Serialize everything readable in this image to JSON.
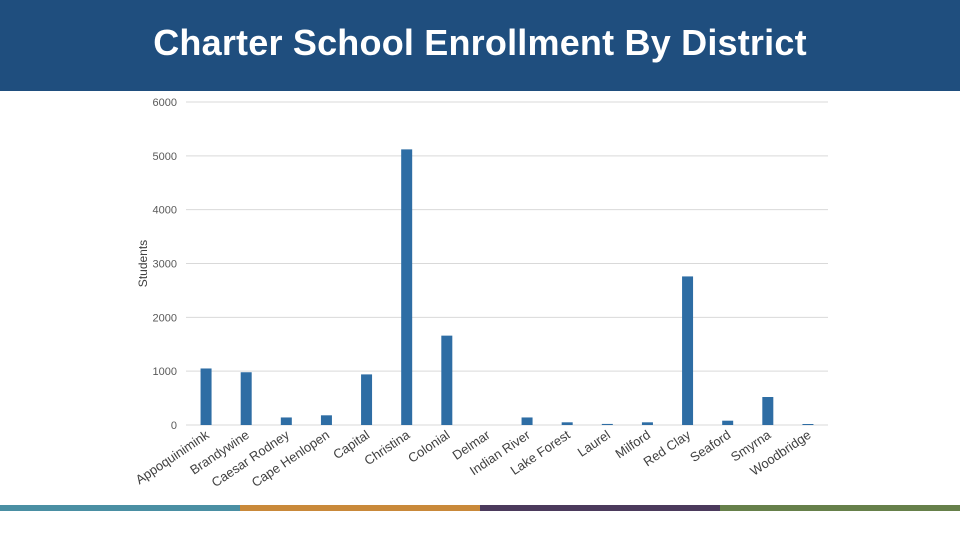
{
  "header": {
    "title": "Charter School Enrollment By District"
  },
  "colors": {
    "header_bg": "#1f4e7e",
    "bar": "#2e6da4",
    "grid": "#d9d9d9",
    "band_colors": [
      "#4a8fa3",
      "#c9893a",
      "#4b3a5c",
      "#66804a"
    ]
  },
  "chart_data": {
    "type": "bar",
    "ylabel": "Students",
    "xlabel": "",
    "ylim": [
      0,
      6000
    ],
    "yticks": [
      0,
      1000,
      2000,
      3000,
      4000,
      5000,
      6000
    ],
    "grid": true,
    "legend": "none",
    "categories": [
      "Appoquinimink",
      "Brandywine",
      "Caesar Rodney",
      "Cape Henlopen",
      "Capital",
      "Christina",
      "Colonial",
      "Delmar",
      "Indian River",
      "Lake Forest",
      "Laurel",
      "Milford",
      "Red Clay",
      "Seaford",
      "Smyrna",
      "Woodbridge"
    ],
    "values": [
      1050,
      980,
      140,
      180,
      940,
      5120,
      1660,
      0,
      140,
      50,
      20,
      50,
      2760,
      80,
      520,
      10
    ]
  }
}
